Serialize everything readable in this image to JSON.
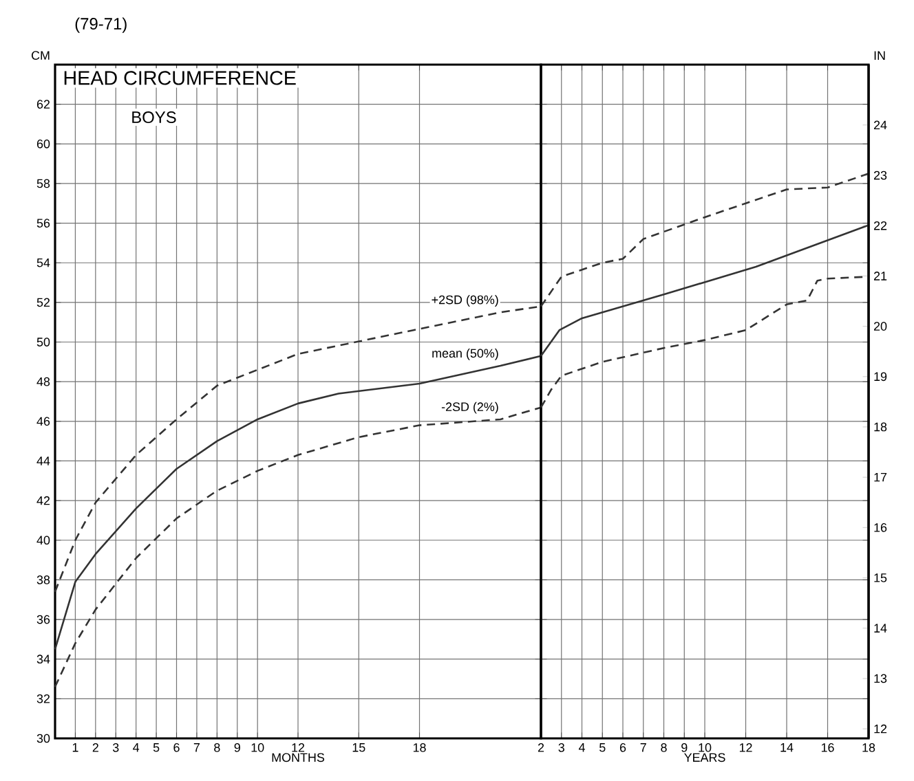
{
  "chart_data": [
    {
      "type": "line",
      "title": "HEAD CIRCUMFERENCE",
      "subtitle": "BOYS",
      "xlabel": "MONTHS",
      "ylabel": "CM",
      "xlim": [
        0,
        24
      ],
      "ylim": [
        30,
        64
      ],
      "xticks": [
        1,
        2,
        3,
        4,
        5,
        6,
        7,
        8,
        9,
        10,
        12,
        15,
        18
      ],
      "yticks": [
        30,
        32,
        34,
        36,
        38,
        40,
        42,
        44,
        46,
        48,
        50,
        52,
        54,
        56,
        58,
        60,
        62
      ],
      "grid": true,
      "series": [
        {
          "name": "+2SD (98%)",
          "color": "#333333",
          "line_style": "dashed",
          "x": [
            0,
            1,
            2,
            4,
            6,
            8,
            12,
            17.7,
            22,
            24
          ],
          "values": [
            37.4,
            40.0,
            41.9,
            44.3,
            46.1,
            47.8,
            49.4,
            50.6,
            51.5,
            51.8
          ]
        },
        {
          "name": "mean (50%)",
          "color": "#333333",
          "line_style": "solid",
          "x": [
            0,
            1,
            2,
            4,
            6,
            8,
            10,
            12,
            14,
            18,
            22,
            24
          ],
          "values": [
            34.5,
            37.9,
            39.3,
            41.6,
            43.6,
            45.0,
            46.1,
            46.9,
            47.4,
            47.9,
            48.8,
            49.3
          ]
        },
        {
          "name": "-2SD (2%)",
          "color": "#333333",
          "line_style": "dashed",
          "x": [
            0,
            1,
            2,
            4,
            6,
            8,
            10,
            12,
            15,
            18,
            22,
            24
          ],
          "values": [
            32.6,
            34.8,
            36.5,
            39.1,
            41.1,
            42.5,
            43.5,
            44.3,
            45.2,
            45.8,
            46.1,
            46.7
          ]
        }
      ],
      "annotations": [
        "(79-71)"
      ]
    },
    {
      "type": "line",
      "xlabel": "YEARS",
      "y2label": "IN",
      "xlim": [
        2,
        18
      ],
      "ylim": [
        30,
        64
      ],
      "y2lim": [
        11.81,
        25.2
      ],
      "xticks": [
        2,
        3,
        4,
        5,
        6,
        7,
        8,
        9,
        10,
        12,
        14,
        16,
        18
      ],
      "y2ticks": [
        12,
        13,
        14,
        15,
        16,
        17,
        18,
        19,
        20,
        21,
        22,
        23,
        24
      ],
      "grid": true,
      "series": [
        {
          "color": "#333333",
          "line_style": "dashed",
          "x": [
            2,
            3,
            5,
            6,
            7,
            10,
            12,
            14,
            16,
            18
          ],
          "values": [
            51.8,
            53.3,
            54.0,
            54.2,
            55.2,
            56.3,
            57.0,
            57.7,
            57.8,
            58.5
          ]
        },
        {
          "color": "#333333",
          "line_style": "solid",
          "x": [
            2,
            2.9,
            4,
            8,
            12.5,
            18
          ],
          "values": [
            49.3,
            50.6,
            51.2,
            52.4,
            53.8,
            55.9
          ]
        },
        {
          "color": "#333333",
          "line_style": "dashed",
          "x": [
            2,
            2.5,
            3,
            5,
            8,
            10,
            12,
            14,
            15,
            15.5,
            16,
            18
          ],
          "values": [
            46.7,
            47.6,
            48.3,
            49.0,
            49.7,
            50.1,
            50.6,
            51.9,
            52.1,
            53.1,
            53.2,
            53.3
          ]
        }
      ]
    }
  ]
}
